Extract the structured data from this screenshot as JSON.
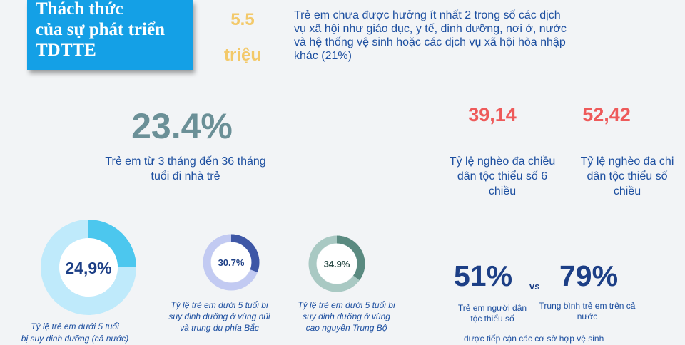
{
  "header": {
    "title_lines": [
      "Thách thức",
      "của sự phát triển",
      "TDTTE"
    ],
    "stat_value": "5.5",
    "stat_unit": "triệu",
    "stat_desc_lines": [
      "Trẻ em chưa được hưởng ít nhất 2 trong số các dịch",
      "vụ xã hội như giáo dục, y tế, dinh dưỡng, nơi ở, nước",
      "và hệ thống vệ sinh hoặc các dịch vụ xã hội hòa nhập",
      "khác (21%)"
    ]
  },
  "nursery": {
    "value": "23.4%",
    "caption_lines": [
      "Trẻ em từ 3 tháng đến 36 tháng",
      "tuổi đi nhà trẻ"
    ]
  },
  "poverty": [
    {
      "value": "39,14",
      "caption_lines": [
        "Tỷ lệ nghèo đa chiều",
        "dân tộc thiểu số 6",
        "chiều"
      ]
    },
    {
      "value": "52,42",
      "caption_lines": [
        "Tỷ lệ nghèo đa chi",
        "dân tộc thiểu số",
        "chiều"
      ]
    }
  ],
  "donuts": [
    {
      "label": "24,9%",
      "value": 24.9,
      "ring_color": "#4cc7ee",
      "track_color": "#bfeafb",
      "caption_lines": [
        "Tỷ lệ trẻ em dưới 5 tuổi",
        "bị suy dinh dưỡng (cả nước)"
      ]
    },
    {
      "label": "30.7%",
      "value": 30.7,
      "ring_color": "#3e57a6",
      "track_color": "#c2caf2",
      "caption_lines": [
        "Tỷ lệ trẻ em dưới 5 tuổi bị",
        "suy dinh dưỡng ở vùng núi",
        "và trung du phía Bắc"
      ]
    },
    {
      "label": "34.9%",
      "value": 34.9,
      "ring_color": "#5a8a80",
      "track_color": "#a9c9c3",
      "caption_lines": [
        "Tỷ lệ trẻ em dưới 5 tuổi bị",
        "suy dinh dưỡng ở vùng",
        "cao nguyên Trung Bộ"
      ]
    }
  ],
  "comparison": {
    "left_value": "51%",
    "vs": "vs",
    "right_value": "79%",
    "left_caption_lines": [
      "Trẻ em người dân",
      "tộc thiểu số"
    ],
    "right_caption_lines": [
      "Trung bình trẻ em trên cả",
      "nước"
    ],
    "footer": "được tiếp cận các cơ sở hợp vệ sinh"
  },
  "colors": {
    "title_bg": "#14a0e6",
    "accent_yellow": "#f3c96a",
    "text_blue": "#1d4fa0",
    "stat_teal": "#6b9097",
    "stat_red": "#ee5a5a",
    "stat_navy": "#1d3f86"
  }
}
